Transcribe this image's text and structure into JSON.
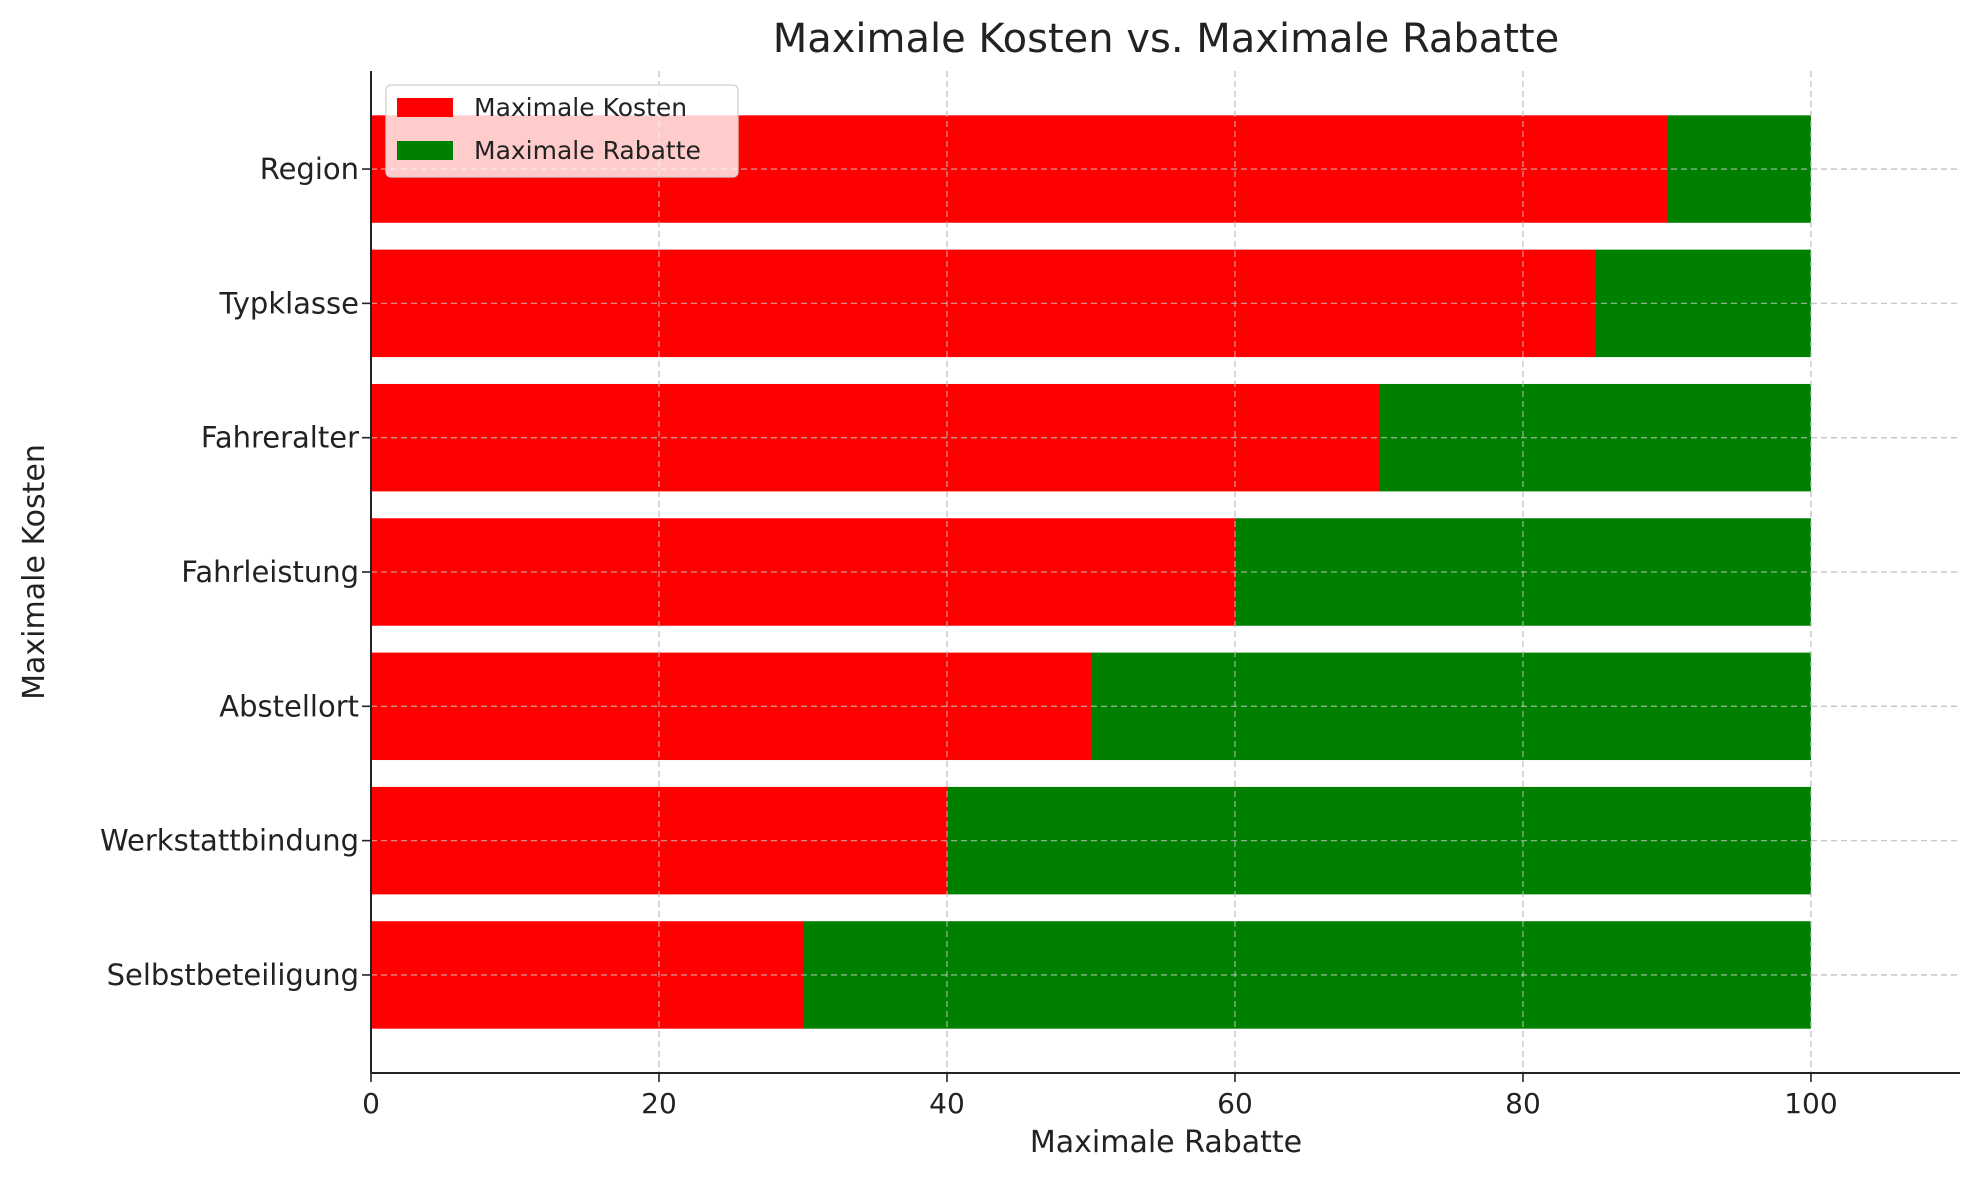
{
  "chart_data": {
    "type": "bar",
    "orientation": "horizontal",
    "stacked": true,
    "title": "Maximale Kosten vs. Maximale Rabatte",
    "xlabel": "Maximale Rabatte",
    "ylabel": "Maximale Kosten",
    "categories": [
      "Selbstbeteiligung",
      "Werkstattbindung",
      "Abstellort",
      "Fahrleistung",
      "Fahreralter",
      "Typklasse",
      "Region"
    ],
    "series": [
      {
        "name": "Maximale Kosten",
        "color": "#ff0000",
        "values": [
          30,
          40,
          50,
          60,
          70,
          85,
          90
        ]
      },
      {
        "name": "Maximale Rabatte",
        "color": "#008000",
        "values": [
          70,
          60,
          50,
          40,
          30,
          15,
          10
        ]
      }
    ],
    "xlim": [
      0,
      110
    ],
    "xticks": [
      0,
      20,
      40,
      60,
      80,
      100
    ],
    "grid": true,
    "legend_position": "top-left"
  }
}
